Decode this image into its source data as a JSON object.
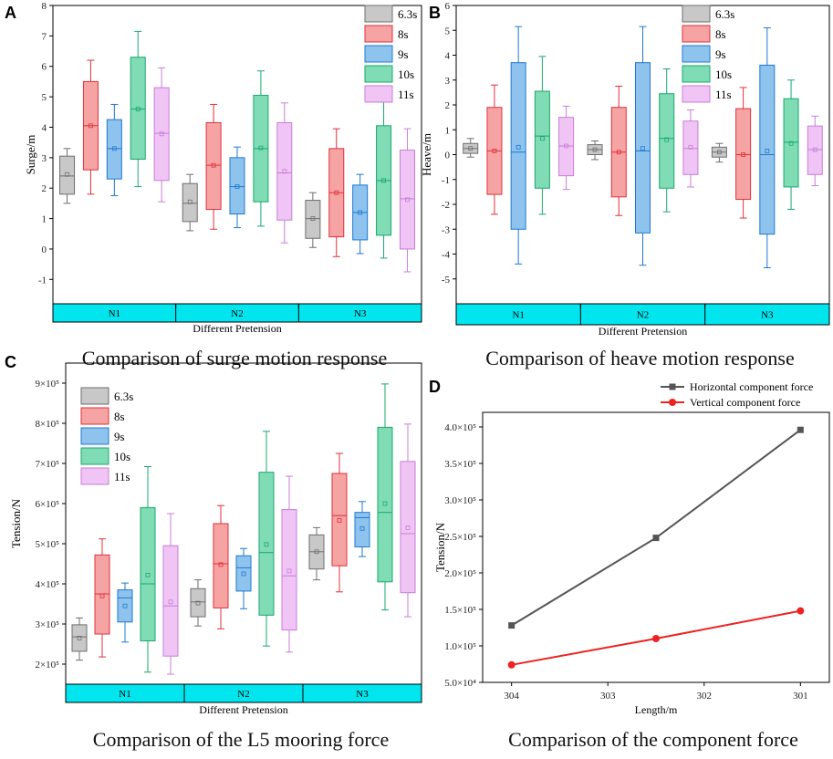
{
  "colors": {
    "group_band": "#00e5ee",
    "series": [
      "#c8c8c8",
      "#f6a3a3",
      "#8ec3ee",
      "#7fdcb5",
      "#f0c4f4"
    ],
    "series_stroke": [
      "#6e6e6e",
      "#e0303a",
      "#1f78d0",
      "#19a86e",
      "#c87ed8"
    ],
    "horizontal_line": "#555555",
    "vertical_line": "#ee2222"
  },
  "chart_data": [
    {
      "id": "A",
      "panel_label": "A",
      "type": "box",
      "title": "Comparison of surge motion response",
      "ylabel": "Surge/m",
      "xlabel": "Different Pretension",
      "ylim": [
        -1.8,
        8
      ],
      "yticks": [
        -1,
        0,
        1,
        2,
        3,
        4,
        5,
        6,
        7,
        8
      ],
      "ytick_labels": [
        "-1",
        "0",
        "1",
        "2",
        "3",
        "4",
        "5",
        "6",
        "7",
        "8"
      ],
      "groups": [
        "N1",
        "N2",
        "N3"
      ],
      "series_names": [
        "6.3s",
        "8s",
        "9s",
        "10s",
        "11s"
      ],
      "boxes": [
        [
          [
            1.5,
            1.8,
            2.4,
            3.05,
            3.3,
            2.45
          ],
          [
            1.8,
            2.6,
            4.05,
            5.5,
            6.2,
            4.05
          ],
          [
            1.75,
            2.3,
            3.3,
            4.25,
            4.75,
            3.3
          ],
          [
            2.05,
            2.95,
            4.6,
            6.3,
            7.15,
            4.6
          ],
          [
            1.55,
            2.25,
            3.8,
            5.3,
            5.95,
            3.78
          ]
        ],
        [
          [
            0.6,
            0.9,
            1.5,
            2.15,
            2.45,
            1.55
          ],
          [
            0.65,
            1.3,
            2.75,
            4.15,
            4.75,
            2.75
          ],
          [
            0.7,
            1.15,
            2.05,
            3.0,
            3.35,
            2.05
          ],
          [
            0.75,
            1.55,
            3.3,
            5.05,
            5.85,
            3.32
          ],
          [
            0.2,
            0.95,
            2.5,
            4.15,
            4.8,
            2.55
          ]
        ],
        [
          [
            0.05,
            0.35,
            1.0,
            1.6,
            1.85,
            1.0
          ],
          [
            -0.25,
            0.4,
            1.85,
            3.3,
            3.95,
            1.85
          ],
          [
            -0.15,
            0.3,
            1.2,
            2.1,
            2.45,
            1.2
          ],
          [
            -0.3,
            0.45,
            2.25,
            4.05,
            4.85,
            2.25
          ],
          [
            -0.75,
            0.0,
            1.65,
            3.25,
            3.95,
            1.62
          ]
        ]
      ]
    },
    {
      "id": "B",
      "panel_label": "B",
      "type": "box",
      "title": "Comparison of heave motion response",
      "ylabel": "Heave/m",
      "xlabel": "Different Pretension",
      "ylim": [
        -6,
        6
      ],
      "yticks": [
        -5,
        -4,
        -3,
        -2,
        -1,
        0,
        1,
        2,
        3,
        4,
        5,
        6
      ],
      "ytick_labels": [
        "-5",
        "-4",
        "-3",
        "-2",
        "-1",
        "0",
        "1",
        "2",
        "3",
        "4",
        "5",
        "6"
      ],
      "groups": [
        "N1",
        "N2",
        "N3"
      ],
      "series_names": [
        "6.3s",
        "8s",
        "9s",
        "10s",
        "11s"
      ],
      "boxes": [
        [
          [
            -0.1,
            0.05,
            0.25,
            0.45,
            0.65,
            0.25
          ],
          [
            -2.4,
            -1.6,
            0.15,
            1.9,
            2.8,
            0.15
          ],
          [
            -4.4,
            -3.0,
            0.1,
            3.7,
            5.15,
            0.3
          ],
          [
            -2.4,
            -1.35,
            0.75,
            2.55,
            3.95,
            0.65
          ],
          [
            -1.4,
            -0.85,
            0.35,
            1.5,
            1.95,
            0.35
          ]
        ],
        [
          [
            -0.2,
            0.0,
            0.2,
            0.4,
            0.55,
            0.2
          ],
          [
            -2.45,
            -1.7,
            0.1,
            1.9,
            2.75,
            0.1
          ],
          [
            -4.45,
            -3.15,
            0.15,
            3.7,
            5.15,
            0.25
          ],
          [
            -2.3,
            -1.35,
            0.65,
            2.45,
            3.45,
            0.6
          ],
          [
            -1.3,
            -0.8,
            0.25,
            1.35,
            1.8,
            0.3
          ]
        ],
        [
          [
            -0.3,
            -0.1,
            0.1,
            0.3,
            0.45,
            0.1
          ],
          [
            -2.55,
            -1.8,
            0.0,
            1.85,
            2.7,
            0.0
          ],
          [
            -4.55,
            -3.2,
            0.0,
            3.6,
            5.1,
            0.15
          ],
          [
            -2.2,
            -1.3,
            0.5,
            2.25,
            3.0,
            0.45
          ],
          [
            -1.25,
            -0.8,
            0.2,
            1.15,
            1.55,
            0.2
          ]
        ]
      ]
    },
    {
      "id": "C",
      "panel_label": "C",
      "type": "box",
      "title": "Comparison of the L5 mooring force",
      "ylabel": "Tension/N",
      "xlabel": "Different Pretension",
      "ylim": [
        150000,
        950000
      ],
      "yticks": [
        200000,
        300000,
        400000,
        500000,
        600000,
        700000,
        800000,
        900000
      ],
      "ytick_labels": [
        "2×10⁵",
        "3×10⁵",
        "4×10⁵",
        "5×10⁵",
        "6×10⁵",
        "7×10⁵",
        "8×10⁵",
        "9×10⁵"
      ],
      "groups": [
        "N1",
        "N2",
        "N3"
      ],
      "series_names": [
        "6.3s",
        "8s",
        "9s",
        "10s",
        "11s"
      ],
      "boxes": [
        [
          [
            210000,
            232000,
            268000,
            298000,
            315000,
            265000
          ],
          [
            218000,
            275000,
            375000,
            472000,
            512000,
            370000
          ],
          [
            255000,
            305000,
            365000,
            385000,
            402000,
            345000
          ],
          [
            180000,
            258000,
            400000,
            590000,
            692000,
            422000
          ],
          [
            175000,
            220000,
            345000,
            495000,
            575000,
            355000
          ]
        ],
        [
          [
            295000,
            318000,
            355000,
            388000,
            410000,
            352000
          ],
          [
            288000,
            340000,
            450000,
            550000,
            595000,
            448000
          ],
          [
            338000,
            382000,
            440000,
            470000,
            488000,
            425000
          ],
          [
            245000,
            322000,
            478000,
            678000,
            780000,
            498000
          ],
          [
            230000,
            285000,
            420000,
            585000,
            668000,
            432000
          ]
        ],
        [
          [
            410000,
            437000,
            480000,
            522000,
            540000,
            480000
          ],
          [
            380000,
            445000,
            570000,
            675000,
            725000,
            558000
          ],
          [
            468000,
            492000,
            565000,
            578000,
            605000,
            538000
          ],
          [
            335000,
            405000,
            578000,
            790000,
            898000,
            600000
          ],
          [
            318000,
            378000,
            525000,
            705000,
            798000,
            540000
          ]
        ]
      ]
    },
    {
      "id": "D",
      "panel_label": "D",
      "type": "line",
      "title": "Comparison of the component force",
      "ylabel": "Tension/N",
      "xlabel": "Length/m",
      "x": [
        304,
        302.5,
        301
      ],
      "xlim": [
        304.3,
        300.7
      ],
      "xticks": [
        304,
        303,
        302,
        301
      ],
      "xtick_labels": [
        "304",
        "303",
        "302",
        "301"
      ],
      "ylim": [
        50000,
        420000
      ],
      "yticks": [
        50000,
        100000,
        150000,
        200000,
        250000,
        300000,
        350000,
        400000
      ],
      "ytick_labels": [
        "5.0×10⁴",
        "1.0×10⁵",
        "1.5×10⁵",
        "2.0×10⁵",
        "2.5×10⁵",
        "3.0×10⁵",
        "3.5×10⁵",
        "4.0×10⁵"
      ],
      "series": [
        {
          "name": "Horizontal component force",
          "values": [
            128000,
            248000,
            396000
          ],
          "marker": "square"
        },
        {
          "name": "Vertical component force",
          "values": [
            74000,
            110000,
            148000
          ],
          "marker": "circle"
        }
      ]
    }
  ]
}
